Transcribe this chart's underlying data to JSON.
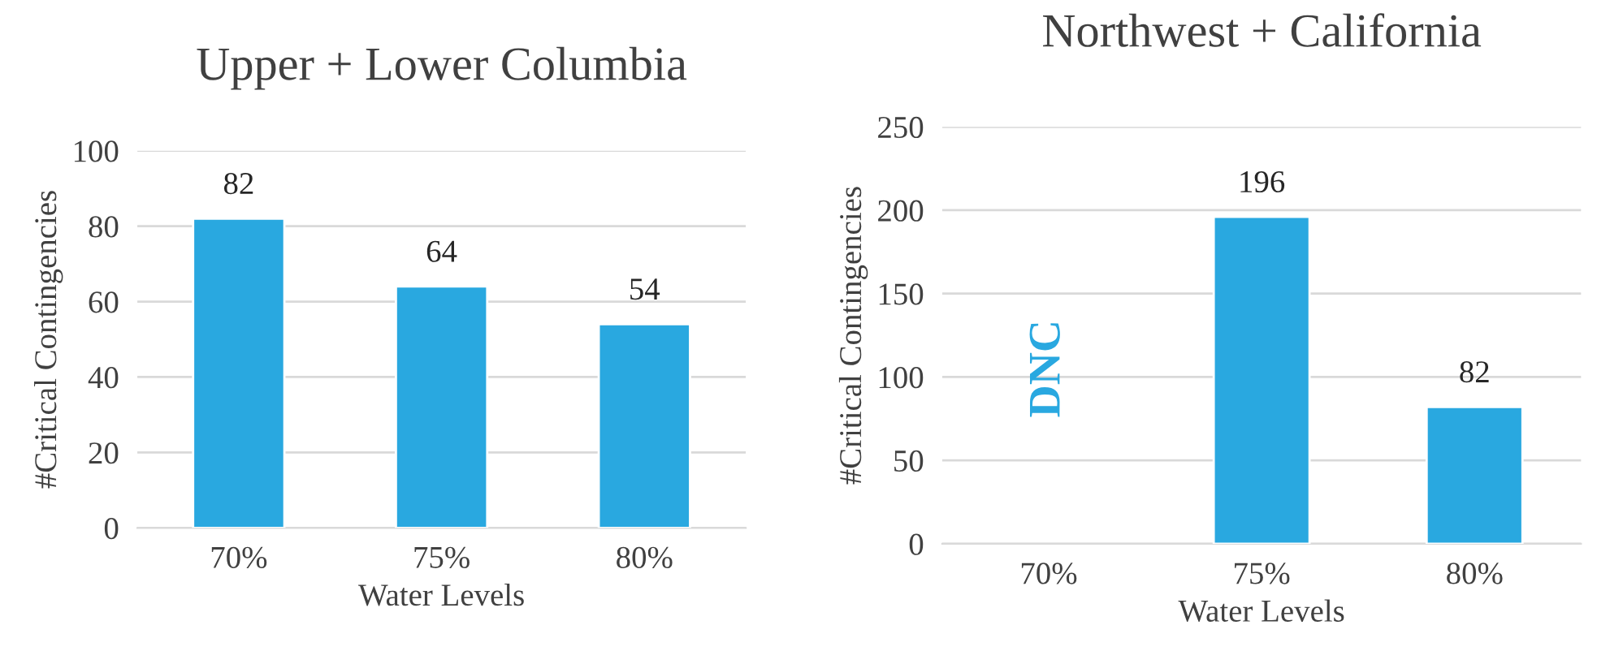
{
  "chart_data": [
    {
      "type": "bar",
      "title": "Upper + Lower Columbia",
      "xlabel": "Water Levels",
      "ylabel": "#Critical Contingencies",
      "categories": [
        "70%",
        "75%",
        "80%"
      ],
      "values": [
        82,
        64,
        54
      ],
      "color": "#29a8e0",
      "ylim": [
        0,
        100
      ],
      "yticks": [
        0,
        20,
        40,
        60,
        80,
        100
      ],
      "grid": "y",
      "data_labels": true
    },
    {
      "type": "bar",
      "title": "Northwest + California",
      "xlabel": "Water Levels",
      "ylabel": "#Critical Contingencies",
      "categories": [
        "70%",
        "75%",
        "80%"
      ],
      "values": [
        null,
        196,
        82
      ],
      "color": "#29a8e0",
      "ylim": [
        0,
        250
      ],
      "yticks": [
        0,
        50,
        100,
        150,
        200,
        250
      ],
      "grid": "y",
      "data_labels": true,
      "annotations": [
        "DNC"
      ]
    }
  ]
}
